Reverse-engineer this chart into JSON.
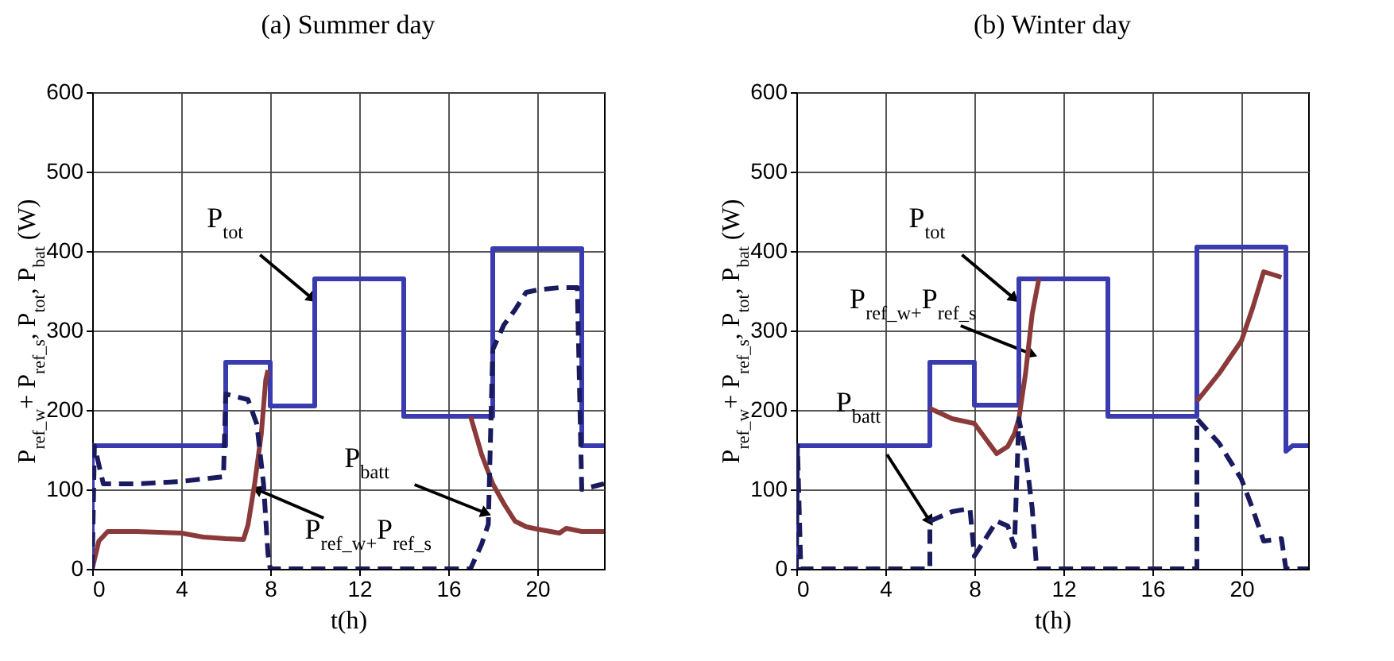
{
  "chart_data": [
    {
      "type": "line",
      "title": "(a) Summer day",
      "xlabel": "t(h)",
      "ylabel": "P$_{ref_w}$+ P$_{ref_s}$, P$_{tot}$, P$_{bat}$ (W)",
      "xlim": [
        0,
        23
      ],
      "ylim": [
        0,
        600
      ],
      "xticks": [
        0,
        4,
        8,
        12,
        16,
        20
      ],
      "yticks": [
        0,
        100,
        200,
        300,
        400,
        500,
        600
      ],
      "grid": true,
      "legend": false,
      "series": [
        {
          "color": "#3b3bb0",
          "line_style": "solid",
          "x": [
            0,
            0,
            6,
            6,
            8,
            8,
            10,
            10,
            14,
            14,
            18,
            18,
            22,
            22,
            23
          ],
          "values": [
            0,
            155,
            155,
            260,
            260,
            205,
            205,
            365,
            365,
            192,
            192,
            403,
            403,
            155,
            155
          ]
        },
        {
          "color": "#8b3a3a",
          "line_style": "solid",
          "x": [
            0,
            0.3,
            0.7,
            2,
            4,
            5,
            6,
            6.8,
            7,
            7.3,
            7.6,
            7.8,
            7.9,
            8.5,
            16.5,
            17,
            17.5,
            18,
            18.5,
            19,
            19.5,
            20,
            21,
            21.3,
            22,
            23
          ],
          "values": [
            0,
            35,
            47,
            47,
            45,
            40,
            38,
            37,
            55,
            107,
            170,
            238,
            250,
            null,
            null,
            192,
            144,
            107,
            82,
            60,
            53,
            50,
            45,
            51,
            47,
            47
          ]
        },
        {
          "color": "#1a1a5e",
          "line_style": "dashed",
          "x": [
            0,
            0.1,
            0.5,
            2,
            4,
            5.9,
            6,
            7,
            7.4,
            7.7,
            7.9,
            8,
            17,
            17.5,
            17.8,
            18,
            18.5,
            19,
            19.5,
            20,
            21,
            21.8,
            22,
            23
          ],
          "values": [
            0,
            155,
            107,
            107,
            110,
            116,
            220,
            213,
            182,
            107,
            19,
            0,
            0,
            31,
            56,
            276,
            307,
            326,
            348,
            351,
            354,
            354,
            100,
            107
          ]
        }
      ],
      "annotations": [
        {
          "text": "P$_{tot}$",
          "x": 9.9,
          "y": 340
        },
        {
          "text": "P$_{ref_w+}$P$_{ref_s}$",
          "x": 7.4,
          "y": 100
        },
        {
          "text": "P$_{batt}$",
          "x": 17.7,
          "y": 70
        }
      ]
    },
    {
      "type": "line",
      "title": "(b) Winter day",
      "xlabel": "t(h)",
      "ylabel": "P$_{ref_w}$+ P$_{ref_s}$, P$_{tot}$, P$_{bat}$ (W)",
      "xlim": [
        0,
        23
      ],
      "ylim": [
        0,
        600
      ],
      "xticks": [
        0,
        4,
        8,
        12,
        16,
        20
      ],
      "yticks": [
        0,
        100,
        200,
        300,
        400,
        500,
        600
      ],
      "grid": true,
      "legend": false,
      "series": [
        {
          "color": "#3b3bb0",
          "line_style": "solid",
          "x": [
            0,
            0,
            6,
            6,
            8,
            8,
            10,
            10,
            14,
            14,
            18,
            18,
            22,
            22,
            22.3,
            23
          ],
          "values": [
            0,
            155,
            155,
            260,
            260,
            206,
            206,
            365,
            365,
            192,
            192,
            405,
            405,
            148,
            155,
            155
          ]
        },
        {
          "color": "#8b3a3a",
          "line_style": "solid",
          "x": [
            6,
            7,
            8,
            8.5,
            9,
            9.5,
            9.8,
            10,
            10.3,
            10.6,
            10.9,
            12,
            17,
            18,
            19,
            20,
            20.5,
            21,
            21.8
          ],
          "values": [
            202,
            189,
            183,
            164,
            145,
            154,
            170,
            189,
            246,
            321,
            365,
            null,
            null,
            211,
            246,
            287,
            328,
            374,
            367
          ]
        },
        {
          "color": "#1a1a5e",
          "line_style": "dashed",
          "x": [
            0,
            0.05,
            0.2,
            6,
            6,
            7,
            7.8,
            8,
            8.5,
            9,
            9.5,
            9.8,
            10,
            10.3,
            10.6,
            10.8,
            18,
            18,
            19,
            20,
            20.5,
            21,
            21.8,
            22,
            23
          ],
          "values": [
            0,
            155,
            0,
            0,
            60,
            72,
            76,
            16,
            38,
            60,
            54,
            28,
            189,
            145,
            76,
            0,
            0,
            189,
            158,
            113,
            76,
            35,
            38,
            0,
            0
          ]
        }
      ],
      "annotations": [
        {
          "text": "P$_{tot}$",
          "x": 9.8,
          "y": 340
        },
        {
          "text": "P$_{ref_w+}$P$_{ref_s}$",
          "x": 10.6,
          "y": 270
        },
        {
          "text": "P$_{batt}$",
          "x": 6,
          "y": 60
        }
      ]
    }
  ]
}
